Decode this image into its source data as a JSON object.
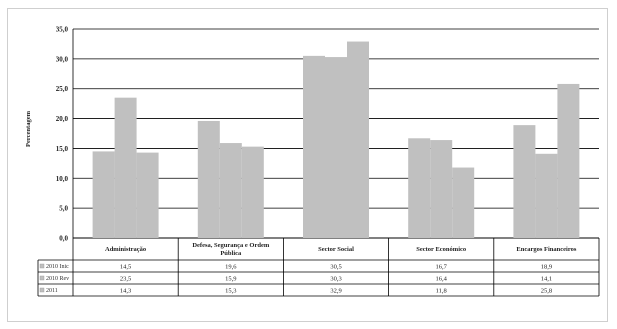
{
  "chart_data": {
    "type": "bar",
    "ylabel": "Percentagem",
    "ylim": [
      0,
      35
    ],
    "yticks": [
      "0,0",
      "5,0",
      "10,0",
      "15,0",
      "20,0",
      "25,0",
      "30,0",
      "35,0"
    ],
    "grid": true,
    "categories": [
      [
        "Administração"
      ],
      [
        "Defesa, Segurança e Ordem",
        "Pública"
      ],
      [
        "Sector Social"
      ],
      [
        "Sector Económico"
      ],
      [
        "Encargos Financeiros"
      ]
    ],
    "series": [
      {
        "name": "2010 Inic",
        "color": "#c0c0c0",
        "values": [
          14.5,
          19.6,
          30.5,
          16.7,
          18.9
        ],
        "labels": [
          "14,5",
          "19,6",
          "30,5",
          "16,7",
          "18,9"
        ]
      },
      {
        "name": "2010 Rev",
        "color": "#c0c0c0",
        "values": [
          23.5,
          15.9,
          30.3,
          16.4,
          14.1
        ],
        "labels": [
          "23,5",
          "15,9",
          "30,3",
          "16,4",
          "14,1"
        ]
      },
      {
        "name": "2011",
        "color": "#c0c0c0",
        "values": [
          14.3,
          15.3,
          32.9,
          11.8,
          25.8
        ],
        "labels": [
          "14,3",
          "15,3",
          "32,9",
          "11,8",
          "25,8"
        ]
      }
    ]
  }
}
